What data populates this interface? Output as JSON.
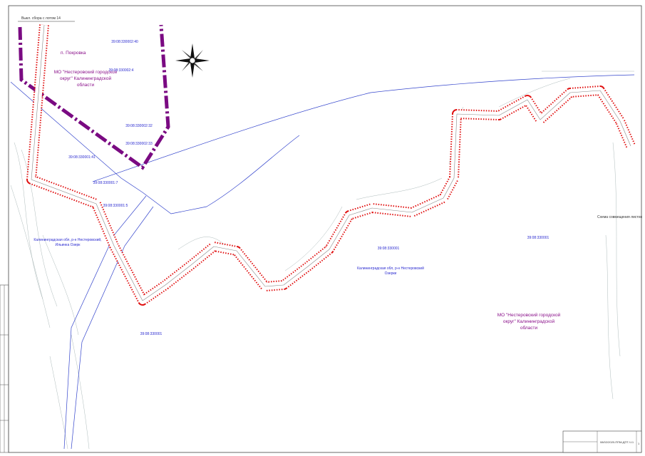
{
  "header_note": "Выкл. сбора с лотом 14",
  "settlement": "п. Покровка",
  "municipality_top": [
    "МО \"Нестеровский городской",
    "округ\" Калининградской",
    "области"
  ],
  "municipality_right": [
    "МО \"Нестеровский городской",
    "округ\" Калининградской",
    "области"
  ],
  "parcels": [
    "39:08:330002:40",
    "39:08:330002:4",
    "39:08:330002:32",
    "39:08:330002:33",
    "39:08:330001:41",
    "39:08:330001:7",
    "39:08:330001:5",
    "39:08:330001",
    "39:08:330001",
    "39:08:330001"
  ],
  "parcel_notes": [
    [
      "Калининградская обл, р-н Нестеровский,",
      "Ильинка Озерк"
    ],
    [
      "Калининградская обл, р-н Нестеровский",
      "Озерки"
    ]
  ],
  "sheet_scheme": "Схема совмещения листов",
  "title_block": {
    "code": "08/02/2020-ППМ-ДПТ-Ч.1",
    "sheet": "1"
  }
}
